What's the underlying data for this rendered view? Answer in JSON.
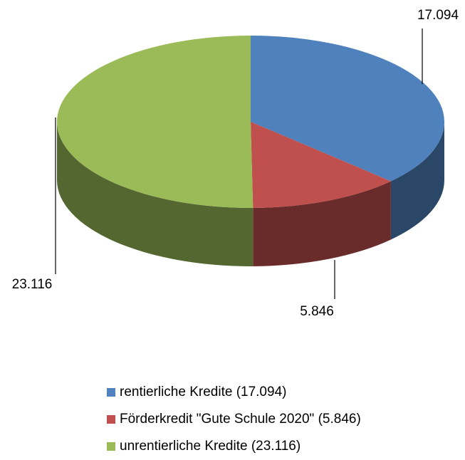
{
  "chart_data": {
    "type": "pie",
    "categories": [
      "rentierliche Kredite (17.094)",
      "Förderkredit \"Gute Schule 2020\" (5.846)",
      "unrentierliche Kredite (23.116)"
    ],
    "values": [
      17.094,
      5.846,
      23.116
    ],
    "colors": [
      "#4f81bd",
      "#c0504d",
      "#9bbb59"
    ],
    "legend": "bottom"
  }
}
